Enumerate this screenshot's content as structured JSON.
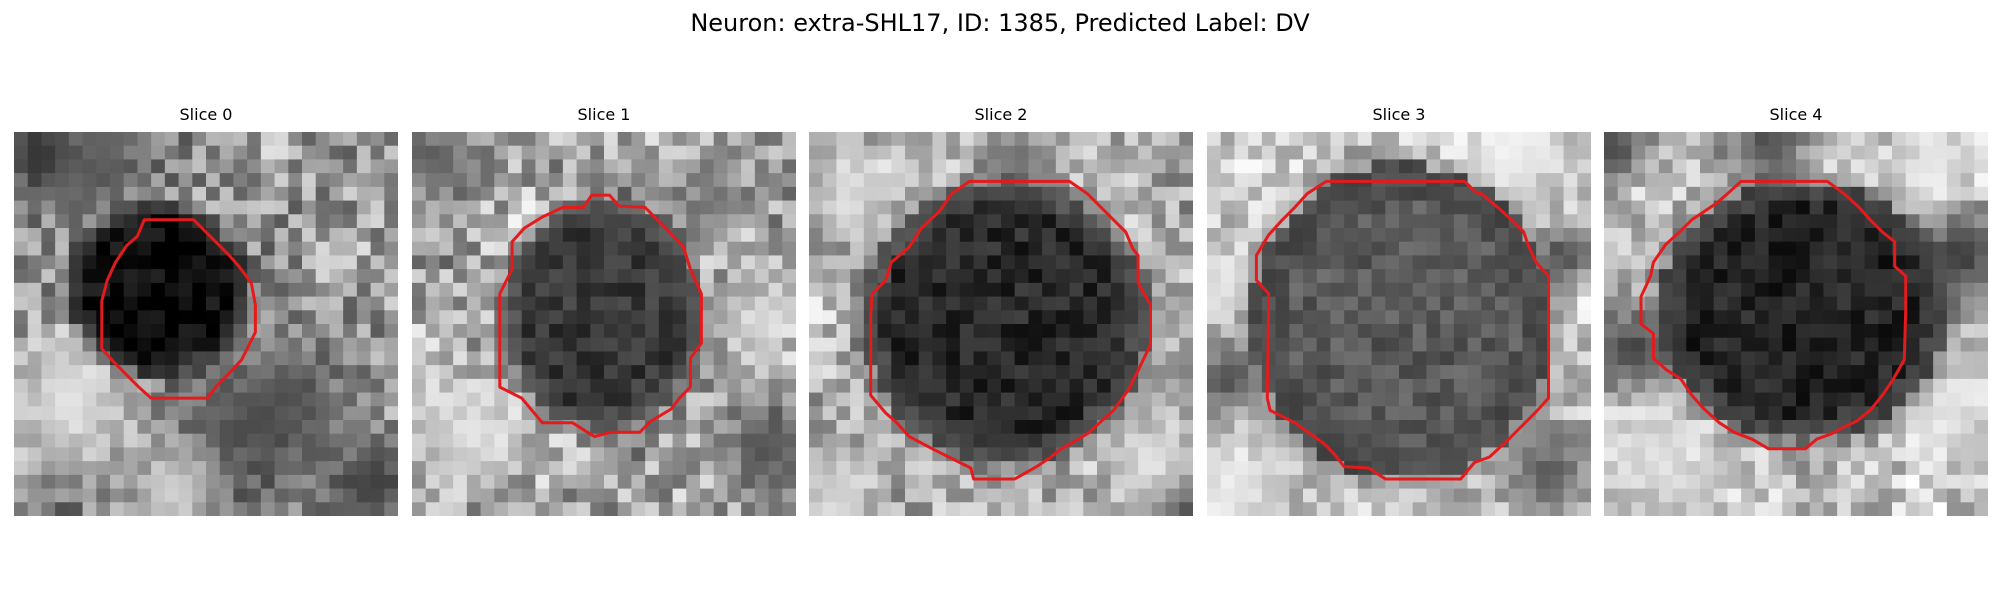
{
  "figure": {
    "suptitle": "Neuron: extra-SHL17, ID: 1385, Predicted Label: DV",
    "contour_color": "#e41a1c"
  },
  "panels": [
    {
      "title": "Slice 0"
    },
    {
      "title": "Slice 1"
    },
    {
      "title": "Slice 2"
    },
    {
      "title": "Slice 3"
    },
    {
      "title": "Slice 4"
    }
  ]
}
